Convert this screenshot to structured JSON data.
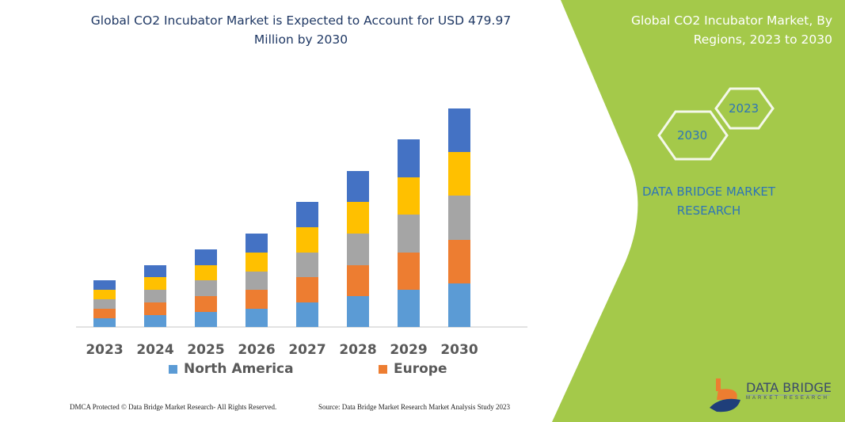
{
  "left_title": "Global CO2 Incubator Market is Expected to Account for USD 479.97 Million by 2030",
  "right_title": "Global CO2 Incubator Market, By Regions, 2023 to 2030",
  "hex_labels": [
    "2023",
    "2030"
  ],
  "brand_text": "DATA BRIDGE MARKET RESEARCH",
  "logo": {
    "name": "DATA BRIDGE",
    "sub": "MARKET RESEARCH"
  },
  "footer": {
    "left": "DMCA Protected © Data Bridge Market Research- All Rights Reserved.",
    "right": "Source: Data Bridge Market Research Market Analysis Study 2023"
  },
  "colors": {
    "accent_green": "#a4c94a",
    "title_blue": "#1f3864",
    "brand_blue": "#2e75b6"
  },
  "chart_data": {
    "type": "bar",
    "stacked": true,
    "categories": [
      "2023",
      "2024",
      "2025",
      "2026",
      "2027",
      "2028",
      "2029",
      "2030"
    ],
    "series": [
      {
        "name": "North America",
        "color": "#5b9bd5",
        "values": [
          11,
          15,
          19,
          23,
          31,
          39,
          47,
          55
        ]
      },
      {
        "name": "Europe",
        "color": "#ed7d31",
        "values": [
          12,
          16,
          20,
          24,
          32,
          39,
          47,
          55
        ]
      },
      {
        "color": "#a5a5a5",
        "values": [
          12,
          16,
          20,
          23,
          31,
          40,
          48,
          56
        ]
      },
      {
        "color": "#ffc000",
        "values": [
          12,
          16,
          19,
          24,
          32,
          40,
          47,
          55
        ]
      },
      {
        "color": "#4472c4",
        "values": [
          12,
          15,
          20,
          24,
          32,
          39,
          48,
          55
        ]
      }
    ],
    "legend": [
      "North America",
      "Europe"
    ],
    "legend_position": "bottom",
    "y_axis_visible": false,
    "grid": false
  }
}
